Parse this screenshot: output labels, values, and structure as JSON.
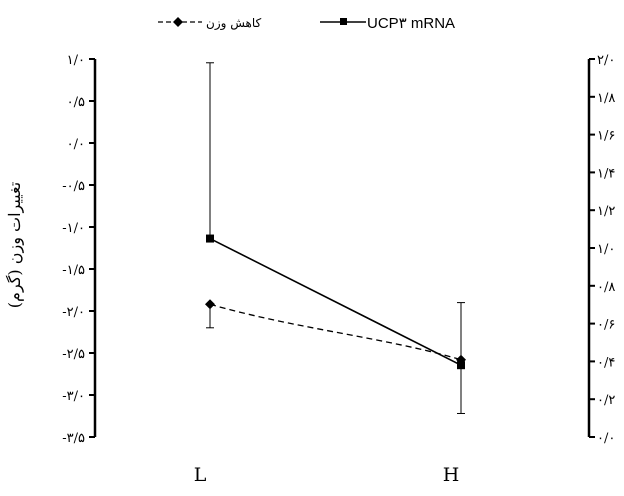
{
  "chart_data": {
    "type": "line",
    "categories": [
      "L",
      "H"
    ],
    "y_left": {
      "label": "تغییرات وزن (گرم)",
      "min": -3.5,
      "max": 1.0,
      "step": 0.5,
      "ticks": [
        "۱/۰",
        "۰/۵",
        "۰/۰",
        "-۰/۵",
        "-۱/۰",
        "-۱/۵",
        "-۲/۰",
        "-۲/۵",
        "-۳/۰",
        "-۳/۵"
      ]
    },
    "y_right": {
      "label": "",
      "min": 0.0,
      "max": 2.0,
      "step": 0.2,
      "ticks": [
        "۲/۰",
        "۱/۸",
        "۱/۶",
        "۱/۴",
        "۱/۲",
        "۱/۰",
        "۰/۸",
        "۰/۶",
        "۰/۴",
        "۰/۲",
        "۰/۰"
      ]
    },
    "series": [
      {
        "name": "UCP۳ mRNA",
        "axis": "right",
        "style": "solid",
        "marker": "square",
        "values": [
          1.05,
          0.38
        ],
        "error_upper": [
          1.98,
          null
        ],
        "error_lower": [
          null,
          null
        ]
      },
      {
        "name": "کاهش وزن",
        "axis": "left",
        "style": "dashed",
        "marker": "diamond",
        "values": [
          -1.92,
          -2.58
        ],
        "error_upper": [
          null,
          -1.9
        ],
        "error_lower": [
          -2.2,
          -3.22
        ]
      }
    ],
    "legend": "top",
    "grid": false
  },
  "colors": {
    "line": "#000000",
    "background": "#ffffff"
  }
}
